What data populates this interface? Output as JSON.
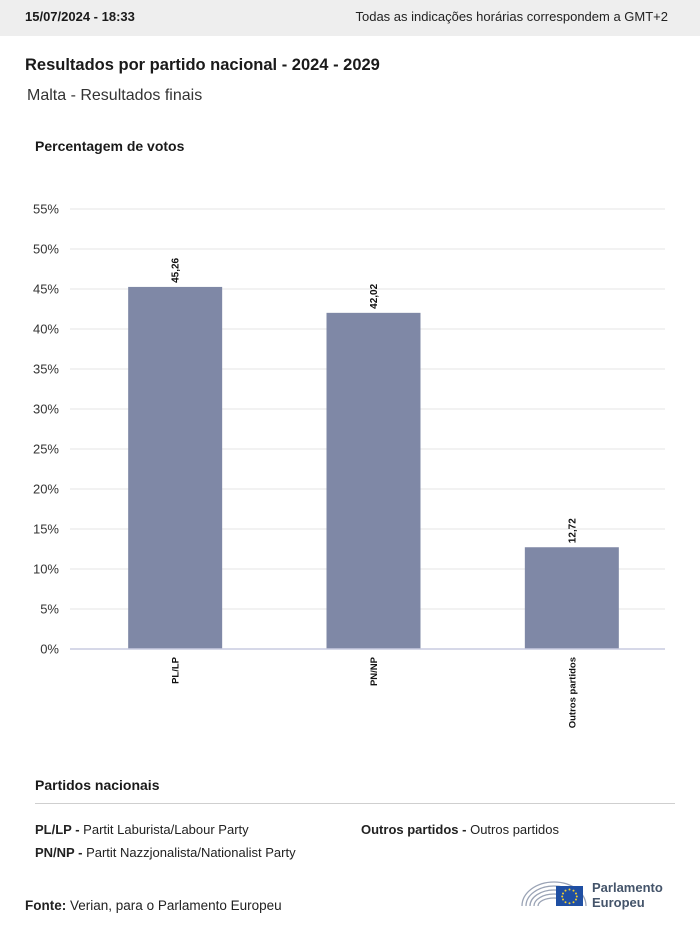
{
  "header": {
    "timestamp": "15/07/2024 - 18:33",
    "timezone_note": "Todas as indicações horárias correspondem a GMT+2"
  },
  "title": "Resultados por partido nacional - 2024 - 2029",
  "subtitle": "Malta - Resultados finais",
  "chart_data": {
    "type": "bar",
    "ylabel": "Percentagem de votos",
    "xlabel": "",
    "categories": [
      "PL/LP",
      "PN/NP",
      "Outros partidos"
    ],
    "values": [
      45.26,
      42.02,
      12.72
    ],
    "value_labels": [
      "45,26",
      "42,02",
      "12,72"
    ],
    "ylim": [
      0,
      55
    ],
    "yticks": [
      "0%",
      "5%",
      "10%",
      "15%",
      "20%",
      "25%",
      "30%",
      "35%",
      "40%",
      "45%",
      "50%",
      "55%"
    ],
    "grid": true,
    "bar_color": "#7f88a6"
  },
  "legend": {
    "title": "Partidos nacionais",
    "items": [
      {
        "abbr": "PL/LP -",
        "name": "Partit Laburista/Labour Party"
      },
      {
        "abbr": "PN/NP -",
        "name": "Partit Nazzjonalista/Nationalist Party"
      },
      {
        "abbr": "Outros partidos -",
        "name": "Outros partidos"
      }
    ]
  },
  "source": {
    "label": "Fonte:",
    "text": "Verian, para o Parlamento Europeu"
  },
  "logo": {
    "line1": "Parlamento",
    "line2": "Europeu"
  }
}
